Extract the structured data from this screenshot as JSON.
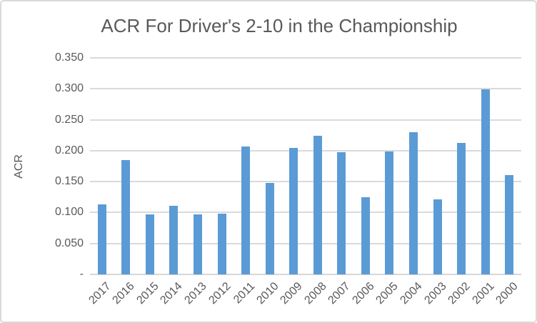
{
  "chart": {
    "title": "ACR For Driver's 2-10 in the Championship",
    "y_axis_title": "ACR"
  },
  "chart_data": {
    "type": "bar",
    "title": "ACR For Driver's 2-10 in the Championship",
    "xlabel": "",
    "ylabel": "ACR",
    "categories": [
      "2017",
      "2016",
      "2015",
      "2014",
      "2013",
      "2012",
      "2011",
      "2010",
      "2009",
      "2008",
      "2007",
      "2006",
      "2005",
      "2004",
      "2003",
      "2002",
      "2001",
      "2000"
    ],
    "values": [
      0.113,
      0.185,
      0.097,
      0.111,
      0.097,
      0.098,
      0.207,
      0.148,
      0.204,
      0.224,
      0.197,
      0.125,
      0.199,
      0.23,
      0.121,
      0.213,
      0.299,
      0.16
    ],
    "ylim": [
      0,
      0.35
    ],
    "ytick_interval": 0.05,
    "yticks": [
      {
        "value": 0.35,
        "label": "0.350"
      },
      {
        "value": 0.3,
        "label": "0.300"
      },
      {
        "value": 0.25,
        "label": "0.250"
      },
      {
        "value": 0.2,
        "label": "0.200"
      },
      {
        "value": 0.15,
        "label": "0.150"
      },
      {
        "value": 0.1,
        "label": "0.100"
      },
      {
        "value": 0.05,
        "label": "0.050"
      },
      {
        "value": 0.0,
        "label": "-"
      }
    ],
    "grid": true,
    "legend": false,
    "bar_color": "#5B9BD5",
    "gridline_color": "#DADADA",
    "axis_line_color": "#D6D6D6",
    "text_color": "#595959"
  }
}
